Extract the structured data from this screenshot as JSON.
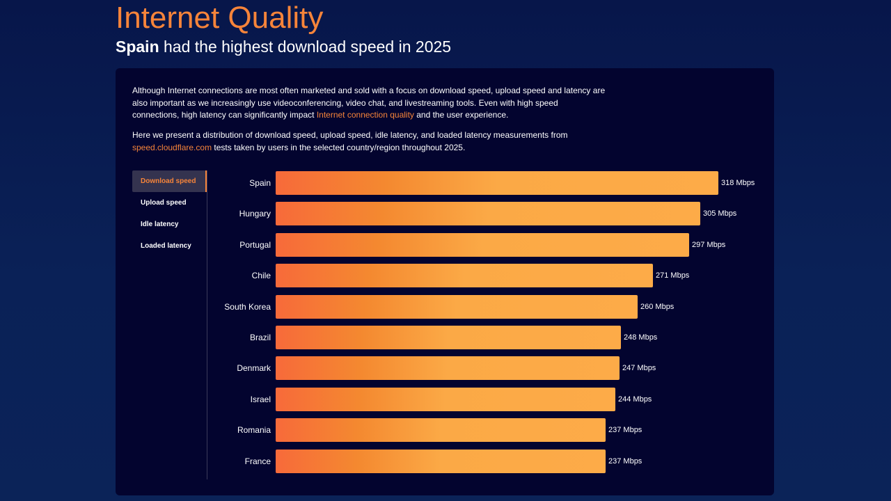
{
  "header": {
    "title": "Internet Quality",
    "subtitle_highlight": "Spain",
    "subtitle_rest": " had the highest download speed in 2025"
  },
  "description": {
    "p1_part1": "Although Internet connections are most often marketed and sold with a focus on download speed, upload speed and latency are also important as we increasingly use videoconferencing, video chat, and livestreaming tools. Even with high speed connections, high latency can significantly impact ",
    "p1_link": "Internet connection quality",
    "p1_part2": " and the user experience.",
    "p2_part1": "Here we present a distribution of download speed, upload speed, idle latency, and loaded latency measurements from ",
    "p2_link": "speed.cloudflare.com",
    "p2_part2": " tests taken by users in the selected country/region throughout 2025."
  },
  "tabs": [
    {
      "label": "Download speed",
      "active": true
    },
    {
      "label": "Upload speed",
      "active": false
    },
    {
      "label": "Idle latency",
      "active": false
    },
    {
      "label": "Loaded latency",
      "active": false
    }
  ],
  "colors": {
    "accent": "#f6843a",
    "bar_start": "#f76a3a",
    "bar_end": "#fdab48",
    "card_bg": "#03042f",
    "page_bg": "#0a2157"
  },
  "chart_data": {
    "type": "bar",
    "orientation": "horizontal",
    "unit": "Mbps",
    "categories": [
      "Spain",
      "Hungary",
      "Portugal",
      "Chile",
      "South Korea",
      "Brazil",
      "Denmark",
      "Israel",
      "Romania",
      "France"
    ],
    "values": [
      318,
      305,
      297,
      271,
      260,
      248,
      247,
      244,
      237,
      237
    ],
    "value_labels": [
      "318 Mbps",
      "305 Mbps",
      "297 Mbps",
      "271 Mbps",
      "260 Mbps",
      "248 Mbps",
      "247 Mbps",
      "244 Mbps",
      "237 Mbps",
      "237 Mbps"
    ],
    "xlim": [
      0,
      318
    ],
    "grid": false,
    "legend": "none"
  }
}
